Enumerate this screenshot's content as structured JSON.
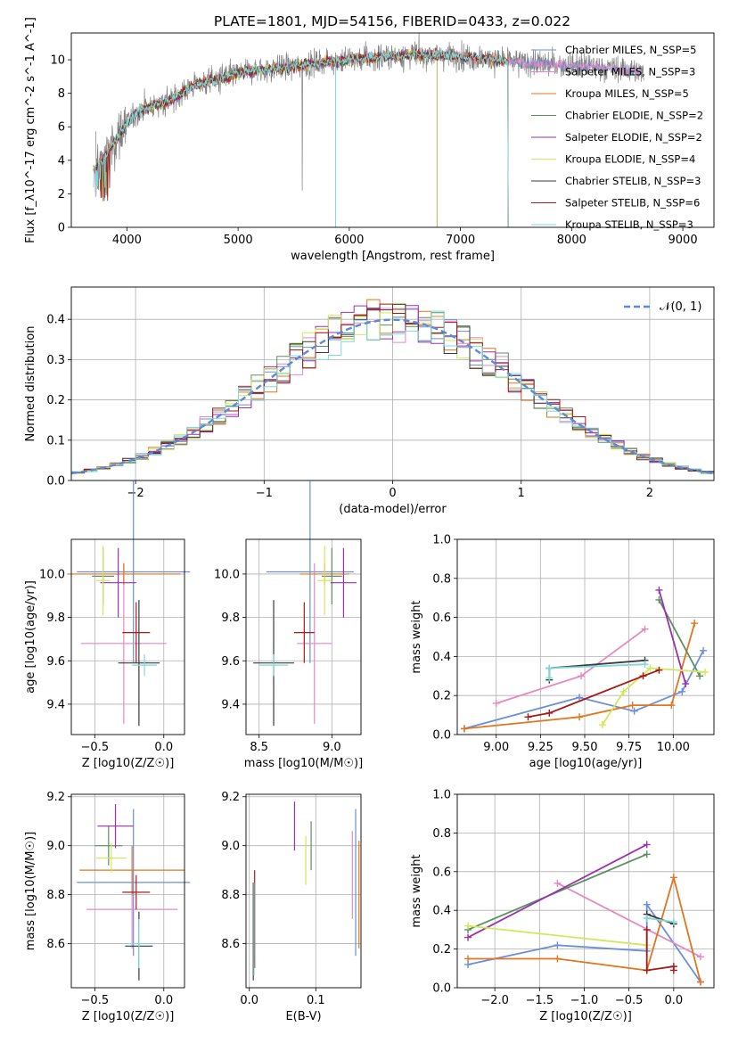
{
  "figure_title": "PLATE=1801, MJD=54156, FIBERID=0433, z=0.022",
  "colors": {
    "chabrier_miles": "#6a8fd8",
    "salpeter_miles": "#e589c3",
    "kroupa_miles": "#e0761f",
    "chabrier_elodie": "#5a9160",
    "salpeter_elodie": "#9b30b0",
    "kroupa_elodie": "#d1e85a",
    "chabrier_stelib": "#3a3a3a",
    "salpeter_stelib": "#a81a1a",
    "kroupa_stelib": "#7fd8d8",
    "data": "#808080",
    "normal_curve": "#5b8bd6"
  },
  "chart_data": [
    {
      "type": "line",
      "panel": "spectrum",
      "xlabel": "wavelength [Angstrom, rest frame]",
      "ylabel": "Flux [f_λ10^-17 erg cm^-2 s^-1 A^-1]",
      "xlim": [
        3500,
        9280
      ],
      "ylim": [
        0,
        11.6
      ],
      "xticks": [
        "4000",
        "5000",
        "6000",
        "7000",
        "8000",
        "9000"
      ],
      "yticks": [
        "0",
        "2",
        "4",
        "6",
        "8",
        "10"
      ],
      "legend_position": "upper right",
      "legend": [
        {
          "label": "Chabrier MILES, N_SSP=5",
          "color_key": "chabrier_miles",
          "range": [
            3700,
            8630
          ]
        },
        {
          "label": "Salpeter MILES, N_SSP=3",
          "color_key": "salpeter_miles",
          "range": [
            3700,
            8630
          ]
        },
        {
          "label": "Kroupa MILES, N_SSP=5",
          "color_key": "kroupa_miles",
          "range": [
            3700,
            7430
          ]
        },
        {
          "label": "Chabrier ELODIE, N_SSP=2",
          "color_key": "chabrier_elodie",
          "range": [
            3700,
            6790
          ]
        },
        {
          "label": "Salpeter ELODIE, N_SSP=2",
          "color_key": "salpeter_elodie",
          "range": [
            3700,
            6790
          ]
        },
        {
          "label": "Kroupa ELODIE, N_SSP=4",
          "color_key": "kroupa_elodie",
          "range": [
            3700,
            6790
          ]
        },
        {
          "label": "Chabrier STELIB, N_SSP=3",
          "color_key": "chabrier_stelib",
          "range": [
            3700,
            7430
          ]
        },
        {
          "label": "Salpeter STELIB, N_SSP=6",
          "color_key": "salpeter_stelib",
          "range": [
            3700,
            7430
          ]
        },
        {
          "label": "Kroupa STELIB, N_SSP=3",
          "color_key": "kroupa_stelib",
          "range": [
            3700,
            7430
          ]
        }
      ],
      "continuum": [
        [
          3720,
          3.5
        ],
        [
          3800,
          4.2
        ],
        [
          3900,
          5.2
        ],
        [
          4000,
          6.2
        ],
        [
          4100,
          6.9
        ],
        [
          4200,
          7.2
        ],
        [
          4400,
          7.6
        ],
        [
          4600,
          8.5
        ],
        [
          4800,
          8.8
        ],
        [
          5000,
          9.2
        ],
        [
          5200,
          9.4
        ],
        [
          5500,
          9.6
        ],
        [
          5800,
          9.9
        ],
        [
          6000,
          10.0
        ],
        [
          6300,
          10.2
        ],
        [
          6600,
          10.3
        ],
        [
          6800,
          10.3
        ],
        [
          7000,
          10.2
        ],
        [
          7300,
          10.0
        ],
        [
          7600,
          9.8
        ],
        [
          7900,
          9.7
        ],
        [
          8200,
          9.6
        ],
        [
          8500,
          9.4
        ],
        [
          8650,
          9.2
        ]
      ]
    },
    {
      "type": "histogram",
      "panel": "residuals",
      "xlabel": "(data-model)/error",
      "ylabel": "Normed distribution",
      "xlim": [
        -2.5,
        2.5
      ],
      "ylim": [
        0,
        0.48
      ],
      "xticks": [
        "−2",
        "−1",
        "0",
        "1",
        "2"
      ],
      "yticks": [
        "0.0",
        "0.1",
        "0.2",
        "0.3",
        "0.4"
      ],
      "legend_position": "upper right",
      "legend": [
        {
          "label": "𝒩(0, 1)",
          "color_key": "normal_curve"
        }
      ],
      "bin_width": 0.1
    },
    {
      "type": "scatter",
      "panel": "age-vs-Z",
      "xlabel": "Z [log10(Z/Z☉)]",
      "ylabel": "age [log10(age/yr)]",
      "xlim": [
        -0.67,
        0.15
      ],
      "ylim": [
        9.26,
        10.16
      ],
      "xticks": [
        "−0.5",
        "0.0"
      ],
      "yticks": [
        "9.4",
        "9.6",
        "9.8",
        "10.0"
      ],
      "points": [
        {
          "color_key": "chabrier_miles",
          "x": -0.22,
          "xerr": 0.41,
          "y": 10.01,
          "yerr": 0.42
        },
        {
          "color_key": "salpeter_miles",
          "x": -0.29,
          "xerr": 0.31,
          "y": 9.68,
          "yerr": 0.37
        },
        {
          "color_key": "kroupa_miles",
          "x": -0.29,
          "xerr": 0.41,
          "y": 10.0,
          "yerr": 0.05
        },
        {
          "color_key": "chabrier_elodie",
          "x": -0.44,
          "xerr": 0.08,
          "y": 9.99,
          "yerr": 0.13
        },
        {
          "color_key": "salpeter_elodie",
          "x": -0.33,
          "xerr": 0.13,
          "y": 9.96,
          "yerr": 0.16
        },
        {
          "color_key": "kroupa_elodie",
          "x": -0.44,
          "xerr": 0.05,
          "y": 9.97,
          "yerr": 0.16
        },
        {
          "color_key": "chabrier_stelib",
          "x": -0.18,
          "xerr": 0.15,
          "y": 9.59,
          "yerr": 0.29
        },
        {
          "color_key": "salpeter_stelib",
          "x": -0.2,
          "xerr": 0.1,
          "y": 9.73,
          "yerr": 0.14
        },
        {
          "color_key": "kroupa_stelib",
          "x": -0.14,
          "xerr": 0.09,
          "y": 9.58,
          "yerr": 0.05
        }
      ]
    },
    {
      "type": "scatter",
      "panel": "age-vs-mass",
      "xlabel": "mass [log10(M/M☉)]",
      "ylabel": "",
      "xlim": [
        8.41,
        9.2
      ],
      "ylim": [
        9.26,
        10.16
      ],
      "xticks": [
        "8.5",
        "9.0"
      ],
      "yticks": [
        "9.4",
        "9.6",
        "9.8",
        "10.0"
      ],
      "points": [
        {
          "color_key": "chabrier_miles",
          "x": 8.85,
          "xerr": 0.3,
          "y": 10.01,
          "yerr": 0.42
        },
        {
          "color_key": "salpeter_miles",
          "x": 8.88,
          "xerr": 0.12,
          "y": 9.68,
          "yerr": 0.37
        },
        {
          "color_key": "kroupa_miles",
          "x": 8.95,
          "xerr": 0.17,
          "y": 10.0,
          "yerr": 0.05
        },
        {
          "color_key": "chabrier_elodie",
          "x": 9.0,
          "xerr": 0.07,
          "y": 9.99,
          "yerr": 0.13
        },
        {
          "color_key": "salpeter_elodie",
          "x": 9.08,
          "xerr": 0.09,
          "y": 9.96,
          "yerr": 0.16
        },
        {
          "color_key": "kroupa_elodie",
          "x": 8.95,
          "xerr": 0.05,
          "y": 9.97,
          "yerr": 0.16
        },
        {
          "color_key": "chabrier_stelib",
          "x": 8.6,
          "xerr": 0.14,
          "y": 9.59,
          "yerr": 0.29
        },
        {
          "color_key": "salpeter_stelib",
          "x": 8.81,
          "xerr": 0.07,
          "y": 9.73,
          "yerr": 0.14
        },
        {
          "color_key": "kroupa_stelib",
          "x": 8.6,
          "xerr": 0.1,
          "y": 9.58,
          "yerr": 0.05
        }
      ]
    },
    {
      "type": "line",
      "panel": "mass-weight-vs-age",
      "xlabel": "age [log10(age/yr)]",
      "ylabel": "mass weight",
      "xlim": [
        8.78,
        10.23
      ],
      "ylim": [
        0,
        1.0
      ],
      "xticks": [
        "9.00",
        "9.25",
        "9.50",
        "9.75",
        "10.00"
      ],
      "yticks": [
        "0.0",
        "0.2",
        "0.4",
        "0.6",
        "0.8",
        "1.0"
      ],
      "series": [
        {
          "color_key": "chabrier_miles",
          "points": [
            [
              8.82,
              0.03
            ],
            [
              9.47,
              0.19
            ],
            [
              9.78,
              0.12
            ],
            [
              10.05,
              0.22
            ],
            [
              10.17,
              0.43
            ]
          ]
        },
        {
          "color_key": "salpeter_miles",
          "points": [
            [
              9.0,
              0.16
            ],
            [
              9.48,
              0.3
            ],
            [
              9.84,
              0.54
            ]
          ]
        },
        {
          "color_key": "kroupa_miles",
          "points": [
            [
              8.82,
              0.03
            ],
            [
              9.47,
              0.09
            ],
            [
              9.77,
              0.15
            ],
            [
              9.99,
              0.15
            ],
            [
              10.12,
              0.57
            ]
          ]
        },
        {
          "color_key": "chabrier_elodie",
          "points": [
            [
              9.92,
              0.69
            ],
            [
              10.15,
              0.3
            ]
          ]
        },
        {
          "color_key": "salpeter_elodie",
          "points": [
            [
              9.92,
              0.74
            ],
            [
              10.07,
              0.26
            ]
          ]
        },
        {
          "color_key": "kroupa_elodie",
          "points": [
            [
              9.6,
              0.05
            ],
            [
              9.72,
              0.22
            ],
            [
              9.87,
              0.34
            ],
            [
              10.18,
              0.32
            ]
          ]
        },
        {
          "color_key": "chabrier_stelib",
          "points": [
            [
              9.3,
              0.28
            ],
            [
              9.3,
              0.34
            ],
            [
              9.84,
              0.38
            ]
          ]
        },
        {
          "color_key": "salpeter_stelib",
          "points": [
            [
              9.18,
              0.09
            ],
            [
              9.3,
              0.11
            ],
            [
              9.83,
              0.3
            ],
            [
              9.92,
              0.33
            ]
          ]
        },
        {
          "color_key": "kroupa_stelib",
          "points": [
            [
              9.3,
              0.29
            ],
            [
              9.3,
              0.34
            ],
            [
              9.84,
              0.36
            ]
          ]
        }
      ]
    },
    {
      "type": "scatter",
      "panel": "mass-vs-Z",
      "xlabel": "Z [log10(Z/Z☉)]",
      "ylabel": "mass [log10(M/M☉)]",
      "xlim": [
        -0.67,
        0.15
      ],
      "ylim": [
        8.42,
        9.21
      ],
      "xticks": [
        "−0.5",
        "0.0"
      ],
      "yticks": [
        "8.6",
        "8.8",
        "9.0",
        "9.2"
      ],
      "points": [
        {
          "color_key": "chabrier_miles",
          "x": -0.22,
          "xerr": 0.41,
          "y": 8.85,
          "yerr": 0.3
        },
        {
          "color_key": "salpeter_miles",
          "x": -0.23,
          "xerr": 0.33,
          "y": 8.74,
          "yerr": 0.16
        },
        {
          "color_key": "kroupa_miles",
          "x": -0.23,
          "xerr": 0.38,
          "y": 8.9,
          "yerr": 0.1
        },
        {
          "color_key": "chabrier_elodie",
          "x": -0.4,
          "xerr": 0.1,
          "y": 9.0,
          "yerr": 0.08
        },
        {
          "color_key": "salpeter_elodie",
          "x": -0.35,
          "xerr": 0.13,
          "y": 9.08,
          "yerr": 0.09
        },
        {
          "color_key": "kroupa_elodie",
          "x": -0.38,
          "xerr": 0.11,
          "y": 8.95,
          "yerr": 0.06
        },
        {
          "color_key": "chabrier_stelib",
          "x": -0.18,
          "xerr": 0.1,
          "y": 8.59,
          "yerr": 0.14
        },
        {
          "color_key": "salpeter_stelib",
          "x": -0.2,
          "xerr": 0.1,
          "y": 8.81,
          "yerr": 0.07
        },
        {
          "color_key": "kroupa_stelib",
          "x": -0.18,
          "xerr": 0.1,
          "y": 8.6,
          "yerr": 0.1
        }
      ]
    },
    {
      "type": "scatter",
      "panel": "mass-vs-ebv",
      "xlabel": "E(B-V)",
      "ylabel": "",
      "xlim": [
        -0.005,
        0.168
      ],
      "ylim": [
        8.42,
        9.21
      ],
      "xticks": [
        "0.0",
        "0.1"
      ],
      "yticks": [
        "8.6",
        "8.8",
        "9.0",
        "9.2"
      ],
      "points": [
        {
          "color_key": "chabrier_miles",
          "x": 0.16,
          "yerr": 0.3,
          "y": 8.85
        },
        {
          "color_key": "salpeter_miles",
          "x": 0.155,
          "yerr": 0.18,
          "y": 8.88
        },
        {
          "color_key": "kroupa_miles",
          "x": 0.165,
          "yerr": 0.22,
          "y": 8.8
        },
        {
          "color_key": "chabrier_elodie",
          "x": 0.093,
          "yerr": 0.1,
          "y": 9.0
        },
        {
          "color_key": "salpeter_elodie",
          "x": 0.068,
          "yerr": 0.1,
          "y": 9.08
        },
        {
          "color_key": "kroupa_elodie",
          "x": 0.085,
          "yerr": 0.1,
          "y": 8.94
        },
        {
          "color_key": "chabrier_stelib",
          "x": 0.006,
          "yerr": 0.2,
          "y": 8.65
        },
        {
          "color_key": "salpeter_stelib",
          "x": 0.008,
          "yerr": 0.2,
          "y": 8.7
        },
        {
          "color_key": "kroupa_stelib",
          "x": 0.007,
          "yerr": 0.19,
          "y": 8.66
        }
      ]
    },
    {
      "type": "line",
      "panel": "mass-weight-vs-Z",
      "xlabel": "Z [log10(Z/Z☉)]",
      "ylabel": "mass weight",
      "xlim": [
        -2.42,
        0.45
      ],
      "ylim": [
        0,
        1.0
      ],
      "xticks": [
        "−2.0",
        "−1.5",
        "−1.0",
        "−0.5",
        "0.0"
      ],
      "yticks": [
        "0.0",
        "0.2",
        "0.4",
        "0.6",
        "0.8",
        "1.0"
      ],
      "series": [
        {
          "color_key": "chabrier_miles",
          "points": [
            [
              -2.3,
              0.12
            ],
            [
              -1.3,
              0.22
            ],
            [
              -0.3,
              0.19
            ],
            [
              -0.3,
              0.43
            ],
            [
              0.3,
              0.03
            ]
          ]
        },
        {
          "color_key": "salpeter_miles",
          "points": [
            [
              -1.3,
              0.54
            ],
            [
              0.3,
              0.16
            ]
          ]
        },
        {
          "color_key": "kroupa_miles",
          "points": [
            [
              -2.3,
              0.15
            ],
            [
              -1.3,
              0.15
            ],
            [
              -0.3,
              0.09
            ],
            [
              0.0,
              0.57
            ],
            [
              0.3,
              0.03
            ]
          ]
        },
        {
          "color_key": "chabrier_elodie",
          "points": [
            [
              -2.3,
              0.3
            ],
            [
              -0.3,
              0.69
            ]
          ]
        },
        {
          "color_key": "salpeter_elodie",
          "points": [
            [
              -2.3,
              0.26
            ],
            [
              -0.3,
              0.74
            ]
          ]
        },
        {
          "color_key": "kroupa_elodie",
          "points": [
            [
              -2.3,
              0.32
            ],
            [
              -0.3,
              0.22
            ]
          ]
        },
        {
          "color_key": "chabrier_stelib",
          "points": [
            [
              -0.3,
              0.38
            ],
            [
              0.0,
              0.33
            ]
          ]
        },
        {
          "color_key": "salpeter_stelib",
          "points": [
            [
              -0.3,
              0.3
            ],
            [
              -0.3,
              0.09
            ],
            [
              0.0,
              0.11
            ],
            [
              0.0,
              0.09
            ]
          ]
        },
        {
          "color_key": "kroupa_stelib",
          "points": [
            [
              -0.3,
              0.36
            ],
            [
              0.0,
              0.34
            ]
          ]
        }
      ]
    }
  ]
}
